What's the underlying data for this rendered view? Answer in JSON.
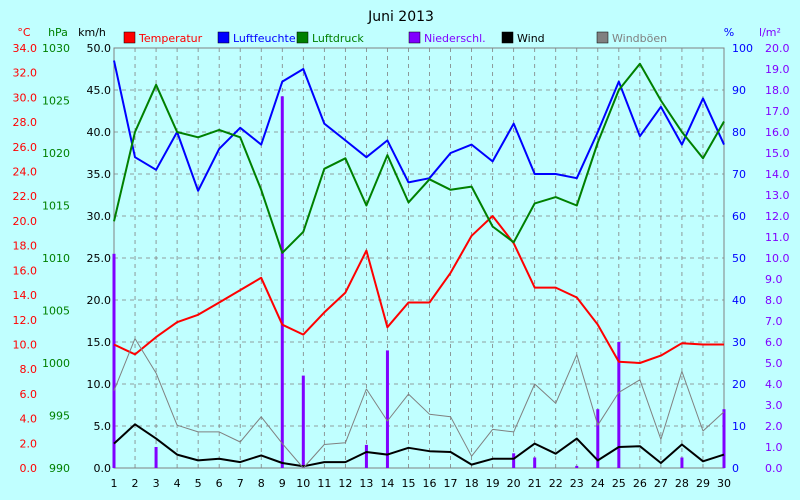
{
  "chart_data": {
    "type": "line",
    "title": "Juni 2013",
    "x": [
      1,
      2,
      3,
      4,
      5,
      6,
      7,
      8,
      9,
      10,
      11,
      12,
      13,
      14,
      15,
      16,
      17,
      18,
      19,
      20,
      21,
      22,
      23,
      24,
      25,
      26,
      27,
      28,
      29,
      30
    ],
    "axes": {
      "temp": {
        "unit": "°C",
        "min": 0,
        "max": 34,
        "ticks": [
          "0.0",
          "2.0",
          "4.0",
          "6.0",
          "8.0",
          "10.0",
          "12.0",
          "14.0",
          "16.0",
          "18.0",
          "20.0",
          "22.0",
          "24.0",
          "26.0",
          "28.0",
          "30.0",
          "32.0",
          "34.0"
        ]
      },
      "press": {
        "unit": "hPa",
        "min": 990,
        "max": 1030,
        "ticks": [
          "990",
          "995",
          "1000",
          "1005",
          "1010",
          "1015",
          "1020",
          "1025",
          "1030"
        ]
      },
      "wind": {
        "unit": "km/h",
        "min": 0,
        "max": 50,
        "ticks": [
          "0.0",
          "5.0",
          "10.0",
          "15.0",
          "20.0",
          "25.0",
          "30.0",
          "35.0",
          "40.0",
          "45.0",
          "50.0"
        ]
      },
      "hum": {
        "unit": "%",
        "min": 0,
        "max": 100,
        "ticks": [
          "0",
          "10",
          "20",
          "30",
          "40",
          "50",
          "60",
          "70",
          "80",
          "90",
          "100"
        ]
      },
      "rain": {
        "unit": "l/m²",
        "min": 0,
        "max": 20,
        "ticks": [
          "0.0",
          "1.0",
          "2.0",
          "3.0",
          "4.0",
          "5.0",
          "6.0",
          "7.0",
          "8.0",
          "9.0",
          "10.0",
          "11.0",
          "12.0",
          "13.0",
          "14.0",
          "15.0",
          "16.0",
          "17.0",
          "18.0",
          "19.0",
          "20.0"
        ]
      }
    },
    "series": [
      {
        "key": "temp",
        "name": "Temperatur",
        "axis": "temp",
        "color": "#ff0000",
        "width": 2,
        "kind": "line",
        "values": [
          10.0,
          9.2,
          10.6,
          11.8,
          12.4,
          13.4,
          14.4,
          15.4,
          11.6,
          10.8,
          12.6,
          14.2,
          17.6,
          11.4,
          13.4,
          13.4,
          15.8,
          18.8,
          20.4,
          18.2,
          14.6,
          14.6,
          13.8,
          11.6,
          8.6,
          8.5,
          9.1,
          10.1,
          10.0,
          10.0
        ]
      },
      {
        "key": "hum",
        "name": "Luftfeuchte",
        "axis": "hum",
        "color": "#0000ff",
        "width": 2,
        "kind": "line",
        "values": [
          97,
          74,
          71,
          80,
          66,
          76,
          81,
          77,
          92,
          95,
          82,
          78,
          74,
          78,
          68,
          69,
          75,
          77,
          73,
          82,
          70,
          70,
          69,
          80,
          92,
          79,
          86,
          77,
          88,
          77
        ]
      },
      {
        "key": "press",
        "name": "Luftdruck",
        "axis": "press",
        "color": "#008000",
        "width": 2,
        "kind": "line",
        "values": [
          1013.5,
          1022.0,
          1026.5,
          1022.0,
          1021.5,
          1022.2,
          1021.5,
          1016.5,
          1010.5,
          1012.5,
          1018.5,
          1019.5,
          1015.0,
          1019.8,
          1015.3,
          1017.5,
          1016.5,
          1016.8,
          1013.0,
          1011.5,
          1015.2,
          1015.8,
          1015.0,
          1021.0,
          1026.0,
          1028.5,
          1025.0,
          1022.0,
          1019.5,
          1023.0
        ]
      },
      {
        "key": "rain",
        "name": "Niederschl.",
        "axis": "rain",
        "color": "#8000ff",
        "width": 2,
        "kind": "bar",
        "values": [
          10.2,
          0,
          1.0,
          0,
          0,
          0,
          0,
          0,
          17.7,
          4.4,
          0,
          0,
          1.1,
          5.6,
          0,
          0,
          0,
          0,
          0,
          0.7,
          0.5,
          0,
          0.1,
          2.8,
          6.0,
          0,
          0,
          0.5,
          0,
          2.8
        ]
      },
      {
        "key": "wind",
        "name": "Wind",
        "axis": "wind",
        "color": "#000000",
        "width": 2,
        "kind": "line",
        "values": [
          2.9,
          5.2,
          3.5,
          1.6,
          0.9,
          1.1,
          0.7,
          1.5,
          0.6,
          0.2,
          0.7,
          0.7,
          1.9,
          1.6,
          2.4,
          2.0,
          1.9,
          0.4,
          1.1,
          1.1,
          2.9,
          1.7,
          3.5,
          0.9,
          2.5,
          2.6,
          0.6,
          2.8,
          0.8,
          1.6
        ]
      },
      {
        "key": "gust",
        "name": "Windböen",
        "axis": "wind",
        "color": "#808080",
        "width": 1,
        "kind": "line",
        "values": [
          9.2,
          15.4,
          11.3,
          5.1,
          4.3,
          4.3,
          3.1,
          6.1,
          2.9,
          0,
          2.8,
          3.0,
          9.4,
          5.6,
          8.8,
          6.4,
          6.1,
          1.4,
          4.6,
          4.3,
          10.0,
          7.7,
          13.5,
          5.1,
          9.0,
          10.5,
          3.4,
          11.5,
          4.4,
          6.7
        ]
      }
    ],
    "grid": true
  }
}
